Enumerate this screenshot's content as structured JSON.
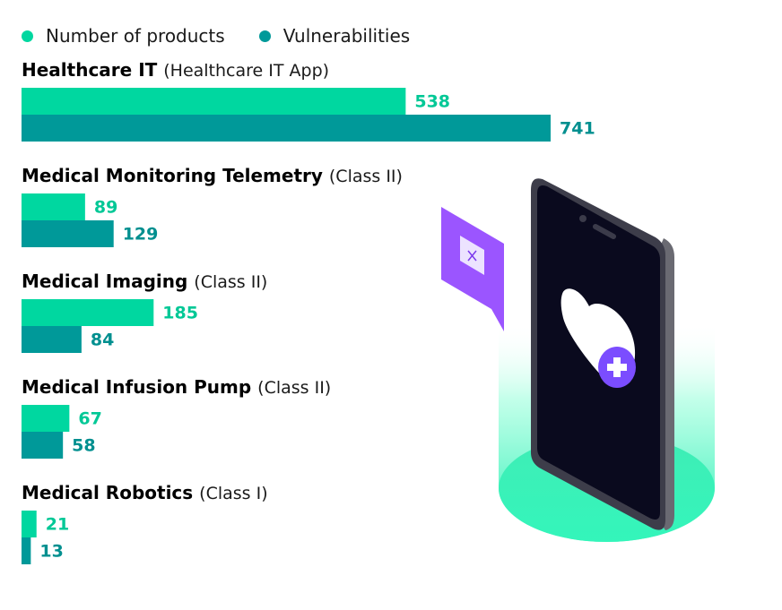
{
  "chart_data": {
    "type": "bar",
    "orientation": "horizontal",
    "legend": [
      {
        "name": "Number of products",
        "color": "#00d7a0"
      },
      {
        "name": "Vulnerabilities",
        "color": "#009999"
      }
    ],
    "categories": [
      {
        "title": "Healthcare IT",
        "subtitle": "(Healthcare IT App)"
      },
      {
        "title": "Medical Monitoring Telemetry",
        "subtitle": "(Class II)"
      },
      {
        "title": "Medical Imaging",
        "subtitle": "(Class II)"
      },
      {
        "title": "Medical Infusion Pump",
        "subtitle": "(Class II)"
      },
      {
        "title": "Medical Robotics",
        "subtitle": "(Class I)"
      }
    ],
    "series": [
      {
        "name": "Number of products",
        "color": "#00d7a0",
        "label_color": "#00c896",
        "values": [
          538,
          89,
          185,
          67,
          21
        ]
      },
      {
        "name": "Vulnerabilities",
        "color": "#009999",
        "label_color": "#008f8f",
        "values": [
          741,
          129,
          84,
          58,
          13
        ]
      }
    ],
    "xlim": [
      0,
      741
    ],
    "grid": false
  },
  "illustration": {
    "name": "phone-health-app-illustration",
    "icons": [
      "heart-icon",
      "plus-icon",
      "close-icon"
    ]
  }
}
